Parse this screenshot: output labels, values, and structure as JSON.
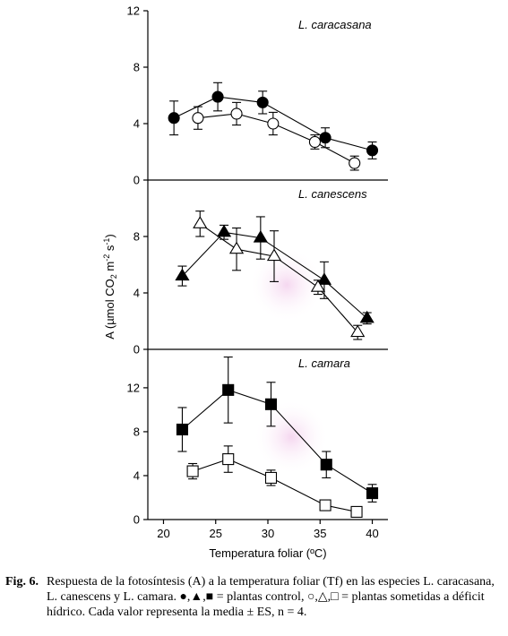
{
  "caption": {
    "fig_label": "Fig. 6.",
    "text": "Respuesta de la fotosíntesis (A) a la temperatura foliar (Tf) en las especies L. caracasana, L. canescens y L. camara. ●,▲,■ = plantas control, ○,△,□ = plantas sometidas a déficit hídrico. Cada valor representa la media ± ES, n = 4."
  },
  "chart_data": {
    "type": "scatter",
    "xlabel": "Temperatura foliar (ºC)",
    "ylabel": "A (µmol CO2 m-2 s-1)",
    "xlim": [
      18.5,
      41.5
    ],
    "xticks": [
      20,
      25,
      30,
      35,
      40
    ],
    "xtick_labels": [
      "20",
      "25",
      "30",
      "35",
      "40"
    ],
    "panels": [
      {
        "label": "L. caracasana",
        "ylim": [
          0,
          12
        ],
        "yticks": [
          0,
          4,
          8,
          12
        ],
        "ytick_labels": [
          "0",
          "4",
          "8",
          "12"
        ],
        "series": [
          {
            "marker": "circle",
            "filled": true,
            "points": [
              [
                21.0,
                4.4,
                1.2
              ],
              [
                25.2,
                5.9,
                1.0
              ],
              [
                29.5,
                5.5,
                0.8
              ],
              [
                35.5,
                3.0,
                0.7
              ],
              [
                40.0,
                2.1,
                0.6
              ]
            ]
          },
          {
            "marker": "circle",
            "filled": false,
            "points": [
              [
                23.3,
                4.4,
                0.8
              ],
              [
                27.0,
                4.7,
                0.8
              ],
              [
                30.5,
                4.0,
                0.8
              ],
              [
                34.5,
                2.7,
                0.5
              ],
              [
                38.3,
                1.2,
                0.5
              ]
            ]
          }
        ]
      },
      {
        "label": "L. canescens",
        "ylim": [
          0,
          12
        ],
        "yticks": [
          0,
          4,
          8
        ],
        "ytick_labels": [
          "0",
          "4",
          "8"
        ],
        "series": [
          {
            "marker": "triangle",
            "filled": true,
            "points": [
              [
                21.8,
                5.2,
                0.7
              ],
              [
                25.8,
                8.3,
                0.5
              ],
              [
                29.3,
                7.9,
                1.5
              ],
              [
                35.4,
                4.9,
                1.3
              ],
              [
                39.5,
                2.2,
                0.4
              ]
            ]
          },
          {
            "marker": "triangle",
            "filled": false,
            "points": [
              [
                23.5,
                8.9,
                0.9
              ],
              [
                27.0,
                7.1,
                1.5
              ],
              [
                30.6,
                6.6,
                1.8
              ],
              [
                34.8,
                4.4,
                0.5
              ],
              [
                38.6,
                1.2,
                0.5
              ]
            ]
          }
        ]
      },
      {
        "label": "L. camara",
        "ylim": [
          0,
          15.5
        ],
        "yticks": [
          0,
          4,
          8,
          12
        ],
        "ytick_labels": [
          "0",
          "4",
          "8",
          "12"
        ],
        "series": [
          {
            "marker": "square",
            "filled": true,
            "points": [
              [
                21.8,
                8.2,
                2.0
              ],
              [
                26.2,
                11.8,
                3.0
              ],
              [
                30.3,
                10.5,
                2.0
              ],
              [
                35.6,
                5.0,
                1.2
              ],
              [
                40.0,
                2.4,
                0.8
              ]
            ]
          },
          {
            "marker": "square",
            "filled": false,
            "points": [
              [
                22.8,
                4.4,
                0.7
              ],
              [
                26.2,
                5.5,
                1.2
              ],
              [
                30.3,
                3.8,
                0.7
              ],
              [
                35.5,
                1.3,
                0.4
              ],
              [
                38.5,
                0.7,
                0.4
              ]
            ]
          }
        ]
      }
    ]
  }
}
